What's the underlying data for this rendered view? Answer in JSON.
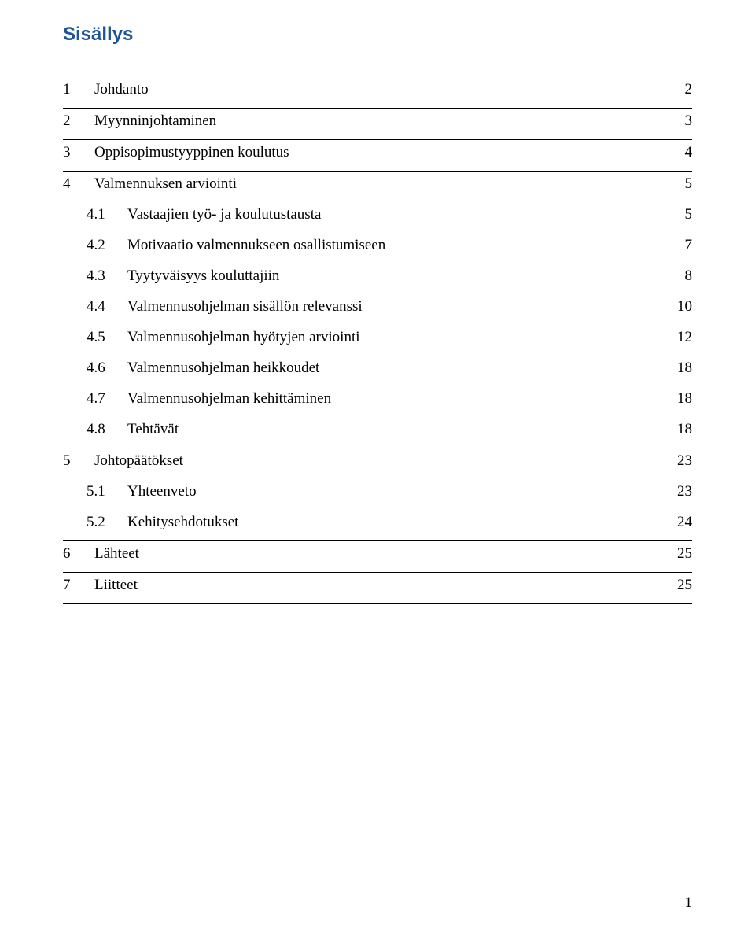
{
  "title": "Sisällys",
  "title_color": "#1f5496",
  "title_font_family": "Arial",
  "title_font_size_pt": 18,
  "body_font_family": "Times New Roman",
  "body_font_size_pt": 14,
  "background_color": "#ffffff",
  "text_color": "#000000",
  "rule_color": "#000000",
  "leader_char": ".",
  "page_number": "1",
  "toc": {
    "entries": [
      {
        "level": 1,
        "num": "1",
        "label": "Johdanto",
        "page": "2"
      },
      {
        "level": 1,
        "num": "2",
        "label": "Myynninjohtaminen",
        "page": "3"
      },
      {
        "level": 1,
        "num": "3",
        "label": "Oppisopimustyyppinen koulutus",
        "page": "4"
      },
      {
        "level": 1,
        "num": "4",
        "label": "Valmennuksen arviointi",
        "page": "5"
      },
      {
        "level": 2,
        "num": "4.1",
        "label": "Vastaajien työ- ja koulutustausta",
        "page": "5"
      },
      {
        "level": 2,
        "num": "4.2",
        "label": "Motivaatio valmennukseen osallistumiseen",
        "page": "7"
      },
      {
        "level": 2,
        "num": "4.3",
        "label": "Tyytyväisyys kouluttajiin",
        "page": "8"
      },
      {
        "level": 2,
        "num": "4.4",
        "label": "Valmennusohjelman sisällön relevanssi",
        "page": "10"
      },
      {
        "level": 2,
        "num": "4.5",
        "label": "Valmennusohjelman hyötyjen arviointi",
        "page": "12"
      },
      {
        "level": 2,
        "num": "4.6",
        "label": "Valmennusohjelman heikkoudet",
        "page": "18"
      },
      {
        "level": 2,
        "num": "4.7",
        "label": "Valmennusohjelman kehittäminen",
        "page": "18"
      },
      {
        "level": 2,
        "num": "4.8",
        "label": "Tehtävät",
        "page": "18"
      },
      {
        "level": 1,
        "num": "5",
        "label": "Johtopäätökset",
        "page": "23"
      },
      {
        "level": 2,
        "num": "5.1",
        "label": "Yhteenveto",
        "page": "23"
      },
      {
        "level": 2,
        "num": "5.2",
        "label": "Kehitysehdotukset",
        "page": "24"
      },
      {
        "level": 1,
        "num": "6",
        "label": "Lähteet",
        "page": "25"
      },
      {
        "level": 1,
        "num": "7",
        "label": "Liitteet",
        "page": "25"
      }
    ]
  }
}
